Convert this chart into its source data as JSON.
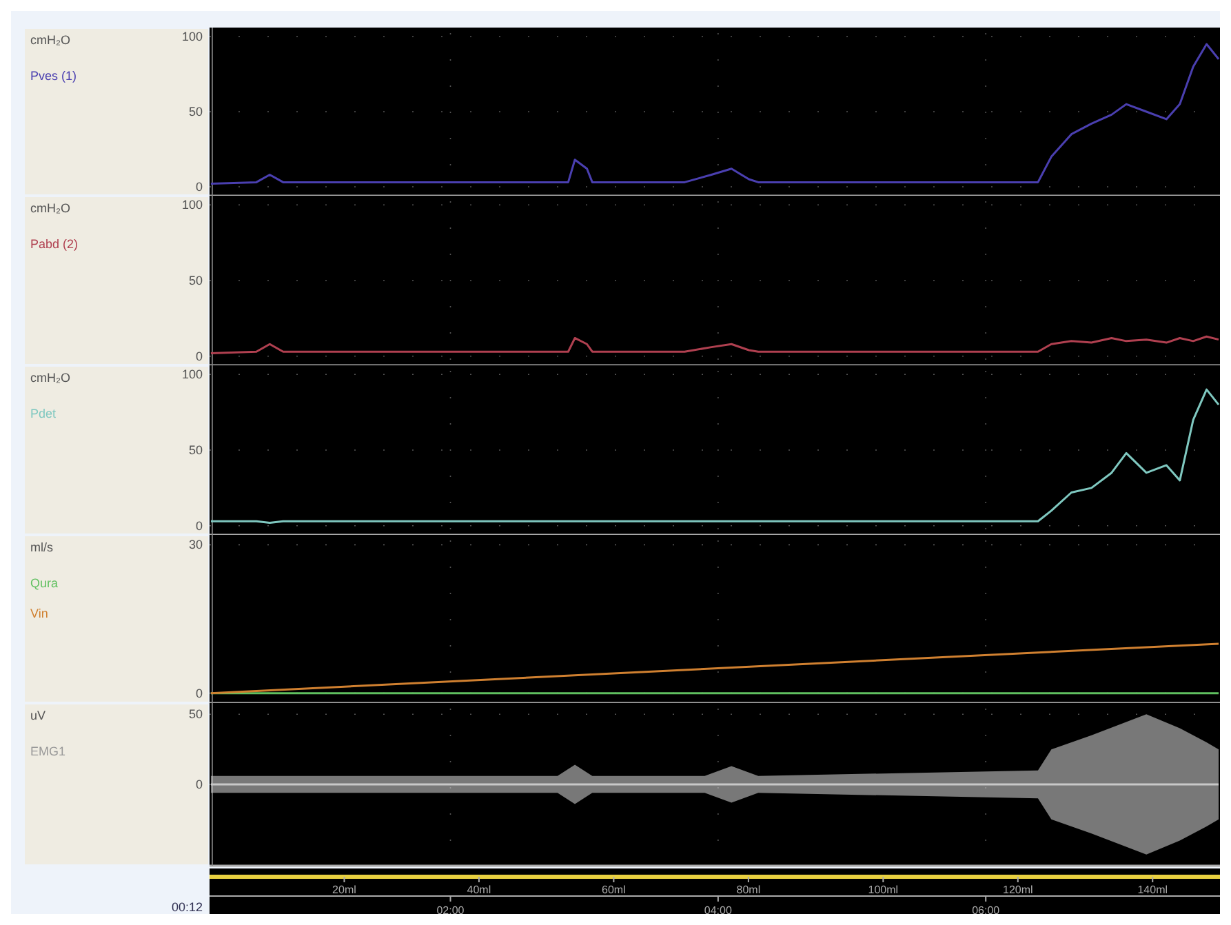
{
  "chart_data": [
    {
      "type": "line",
      "ylabel": "cmH₂O",
      "ylim": [
        -6,
        106
      ],
      "yticks": [
        0,
        50,
        100
      ],
      "grid": true,
      "tick_labels": "y",
      "xlim": [
        0.2,
        7.75
      ],
      "x": [
        0.21,
        0.55,
        0.65,
        0.75,
        2.88,
        2.93,
        3.02,
        3.06,
        3.75,
        3.95,
        4.1,
        4.23,
        4.3,
        6.39,
        6.49,
        6.64,
        6.79,
        6.94,
        7.05,
        7.2,
        7.35,
        7.45,
        7.55,
        7.65,
        7.74
      ],
      "series": [
        {
          "name": "Pves (1)",
          "color": "#4a3fb0",
          "values": [
            2,
            3,
            8,
            3,
            3,
            18,
            12,
            3,
            3,
            8,
            12,
            5,
            3,
            3,
            20,
            35,
            42,
            48,
            55,
            50,
            45,
            55,
            80,
            95,
            85
          ]
        }
      ]
    },
    {
      "type": "line",
      "ylabel": "cmH₂O",
      "ylim": [
        -6,
        106
      ],
      "yticks": [
        0,
        50,
        100
      ],
      "grid": true,
      "tick_labels": "y",
      "xlim": [
        0.2,
        7.75
      ],
      "x": [
        0.21,
        0.55,
        0.65,
        0.75,
        2.88,
        2.93,
        3.02,
        3.06,
        3.75,
        3.95,
        4.1,
        4.23,
        4.3,
        6.39,
        6.49,
        6.64,
        6.79,
        6.94,
        7.05,
        7.2,
        7.35,
        7.45,
        7.55,
        7.65,
        7.74
      ],
      "series": [
        {
          "name": "Pabd (2)",
          "color": "#b04050",
          "values": [
            2,
            3,
            8,
            3,
            3,
            12,
            8,
            3,
            3,
            6,
            8,
            4,
            3,
            3,
            8,
            10,
            9,
            12,
            10,
            11,
            9,
            12,
            10,
            13,
            11
          ]
        }
      ]
    },
    {
      "type": "line",
      "ylabel": "cmH₂O",
      "ylim": [
        -6,
        106
      ],
      "yticks": [
        0,
        50,
        100
      ],
      "grid": true,
      "tick_labels": "y",
      "xlim": [
        0.2,
        7.75
      ],
      "x": [
        0.21,
        0.55,
        0.65,
        0.75,
        2.88,
        2.93,
        3.02,
        3.06,
        3.75,
        3.95,
        4.1,
        4.23,
        4.3,
        6.39,
        6.49,
        6.64,
        6.79,
        6.94,
        7.05,
        7.2,
        7.35,
        7.45,
        7.55,
        7.65,
        7.74
      ],
      "series": [
        {
          "name": "Pdet",
          "color": "#7fc8c0",
          "values": [
            3,
            3,
            2,
            3,
            3,
            3,
            3,
            3,
            3,
            3,
            3,
            3,
            3,
            3,
            10,
            22,
            25,
            35,
            48,
            35,
            40,
            30,
            70,
            90,
            80
          ]
        }
      ]
    },
    {
      "type": "line",
      "ylabel": "ml/s",
      "ylim": [
        -2,
        32
      ],
      "yticks": [
        0,
        30
      ],
      "grid": true,
      "tick_labels": "y",
      "xlim": [
        0.2,
        7.75
      ],
      "x": [
        0.21,
        7.74
      ],
      "series": [
        {
          "name": "Qura",
          "color": "#60c060",
          "values": [
            0,
            0
          ]
        },
        {
          "name": "Vin",
          "color": "#d08030",
          "values": [
            0,
            10
          ]
        }
      ]
    },
    {
      "type": "line",
      "ylabel": "uV",
      "ylim": [
        -58,
        58
      ],
      "yticks": [
        0,
        50
      ],
      "grid": true,
      "xlim": [
        0.2,
        7.75
      ],
      "xticks": [
        {
          "value": 2,
          "label": "02:00"
        },
        {
          "value": 4,
          "label": "04:00"
        },
        {
          "value": 6,
          "label": "06:00"
        }
      ],
      "x2lim": [
        0,
        150
      ],
      "x2ticks": [
        {
          "value": 20,
          "label": "20ml"
        },
        {
          "value": 40,
          "label": "40ml"
        },
        {
          "value": 60,
          "label": "60ml"
        },
        {
          "value": 80,
          "label": "80ml"
        },
        {
          "value": 100,
          "label": "100ml"
        },
        {
          "value": 120,
          "label": "120ml"
        },
        {
          "value": 140,
          "label": "140ml"
        }
      ],
      "x": [
        0.21,
        2.8,
        2.93,
        3.06,
        3.9,
        4.1,
        4.3,
        6.39,
        6.49,
        6.79,
        7.2,
        7.45,
        7.65,
        7.74
      ],
      "series": [
        {
          "name": "EMG1",
          "color": "#c8c8c8",
          "values": [
            0,
            0,
            0,
            0,
            0,
            0,
            0,
            0,
            0,
            0,
            0,
            0,
            0,
            0
          ],
          "lower": [
            -6,
            -6,
            -14,
            -6,
            -6,
            -13,
            -6,
            -10,
            -25,
            -35,
            -50,
            -40,
            -30,
            -25
          ],
          "upper": [
            6,
            6,
            14,
            6,
            6,
            13,
            6,
            10,
            25,
            35,
            50,
            40,
            30,
            25
          ]
        }
      ],
      "annotations": [
        "00:12"
      ]
    }
  ]
}
